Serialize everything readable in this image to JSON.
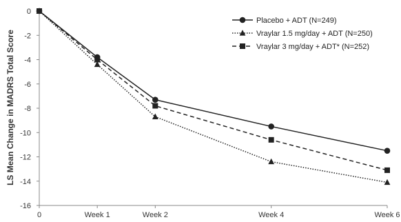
{
  "chart_data": {
    "type": "line",
    "title": "",
    "xlabel": "",
    "ylabel": "LS Mean Change in MADRS Total Score",
    "x_positions": [
      0,
      1,
      2,
      4,
      6
    ],
    "categories": [
      "0",
      "Week 1",
      "Week 2",
      "Week 4",
      "Week 6"
    ],
    "xlim": [
      0,
      6
    ],
    "ylim": [
      -16,
      0
    ],
    "y_ticks": [
      0,
      -2,
      -4,
      -6,
      -8,
      -10,
      -12,
      -14,
      -16
    ],
    "grid": false,
    "legend_position": "top-right",
    "series": [
      {
        "name": "Placebo + ADT (N=249)",
        "values": [
          0,
          -3.8,
          -7.3,
          -9.5,
          -11.5
        ],
        "marker": "circle",
        "line_style": "solid",
        "color": "#222222"
      },
      {
        "name": "Vraylar 1.5 mg/day + ADT (N=250)",
        "values": [
          0,
          -4.4,
          -8.7,
          -12.4,
          -14.1
        ],
        "marker": "triangle",
        "line_style": "dotted",
        "color": "#222222"
      },
      {
        "name": "Vraylar 3 mg/day + ADT* (N=252)",
        "values": [
          0,
          -4.0,
          -7.8,
          -10.6,
          -13.1
        ],
        "marker": "square",
        "line_style": "dashed",
        "color": "#222222"
      }
    ]
  }
}
